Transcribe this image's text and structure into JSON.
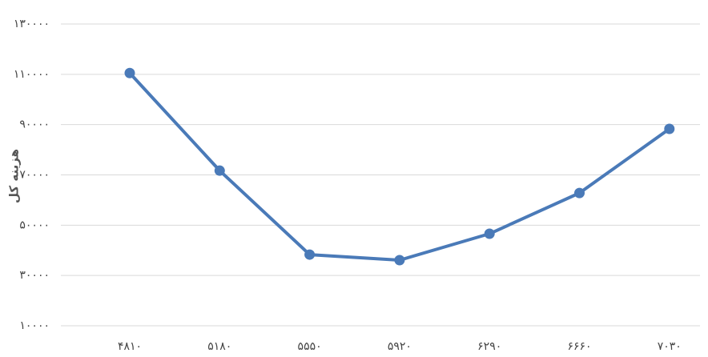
{
  "chart_data": {
    "type": "line",
    "y_label": "هزینه کل",
    "categories": [
      "۴۸۱۰",
      "۵۱۸۰",
      "۵۵۵۰",
      "۵۹۲۰",
      "۶۲۹۰",
      "۶۶۶۰",
      "۷۰۳۰"
    ],
    "series": [
      {
        "color": "#4a7ab8",
        "values": [
          110500,
          71700,
          38300,
          36100,
          46600,
          62800,
          88300
        ]
      }
    ],
    "ylim": [
      10000,
      130000
    ],
    "yticks": [
      {
        "value": 10000,
        "label": "۱۰۰۰۰"
      },
      {
        "value": 30000,
        "label": "۳۰۰۰۰"
      },
      {
        "value": 50000,
        "label": "۵۰۰۰۰"
      },
      {
        "value": 70000,
        "label": "۷۰۰۰۰"
      },
      {
        "value": 90000,
        "label": "۹۰۰۰۰"
      },
      {
        "value": 110000,
        "label": "۱۱۰۰۰۰"
      },
      {
        "value": 130000,
        "label": "۱۳۰۰۰۰"
      }
    ],
    "grid": true
  }
}
